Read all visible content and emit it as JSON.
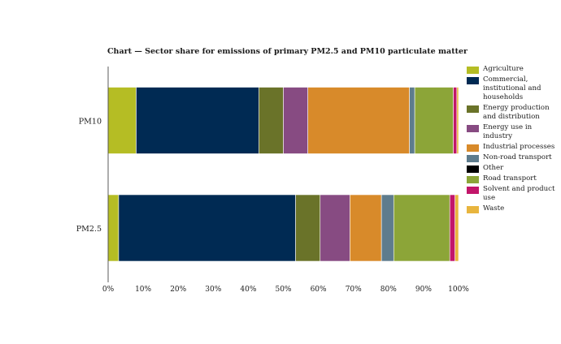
{
  "chart_data": {
    "type": "bar",
    "orientation": "horizontal",
    "stacked": true,
    "title": "Chart — Sector share for emissions of primary PM2.5 and PM10 particulate matter",
    "categories": [
      "PM10",
      "PM2.5"
    ],
    "xlim": [
      0,
      100
    ],
    "x_ticks": [
      "0%",
      "10%",
      "20%",
      "30%",
      "40%",
      "50%",
      "60%",
      "70%",
      "80%",
      "90%",
      "100%"
    ],
    "grid": false,
    "legend_position": "right",
    "series": [
      {
        "name": "Agriculture",
        "color": "#b5bd24",
        "values": [
          8,
          3
        ]
      },
      {
        "name": "Commercial, institutional and households",
        "color": "#002a53",
        "values": [
          35,
          50.5
        ]
      },
      {
        "name": "Energy production and distribution",
        "color": "#6a7329",
        "values": [
          7,
          7
        ]
      },
      {
        "name": "Energy use in industry",
        "color": "#874b82",
        "values": [
          7,
          8.5
        ]
      },
      {
        "name": "Industrial processes",
        "color": "#d88a2a",
        "values": [
          29,
          9
        ]
      },
      {
        "name": "Non-road transport",
        "color": "#5e7c8d",
        "values": [
          1.5,
          3.5
        ]
      },
      {
        "name": "Other",
        "color": "#000000",
        "values": [
          0,
          0
        ]
      },
      {
        "name": "Road transport",
        "color": "#8ca538",
        "values": [
          11,
          16
        ]
      },
      {
        "name": "Solvent and product use",
        "color": "#c2166a",
        "values": [
          1,
          1.5
        ]
      },
      {
        "name": "Waste",
        "color": "#e8b53e",
        "values": [
          0.5,
          1
        ]
      }
    ]
  }
}
